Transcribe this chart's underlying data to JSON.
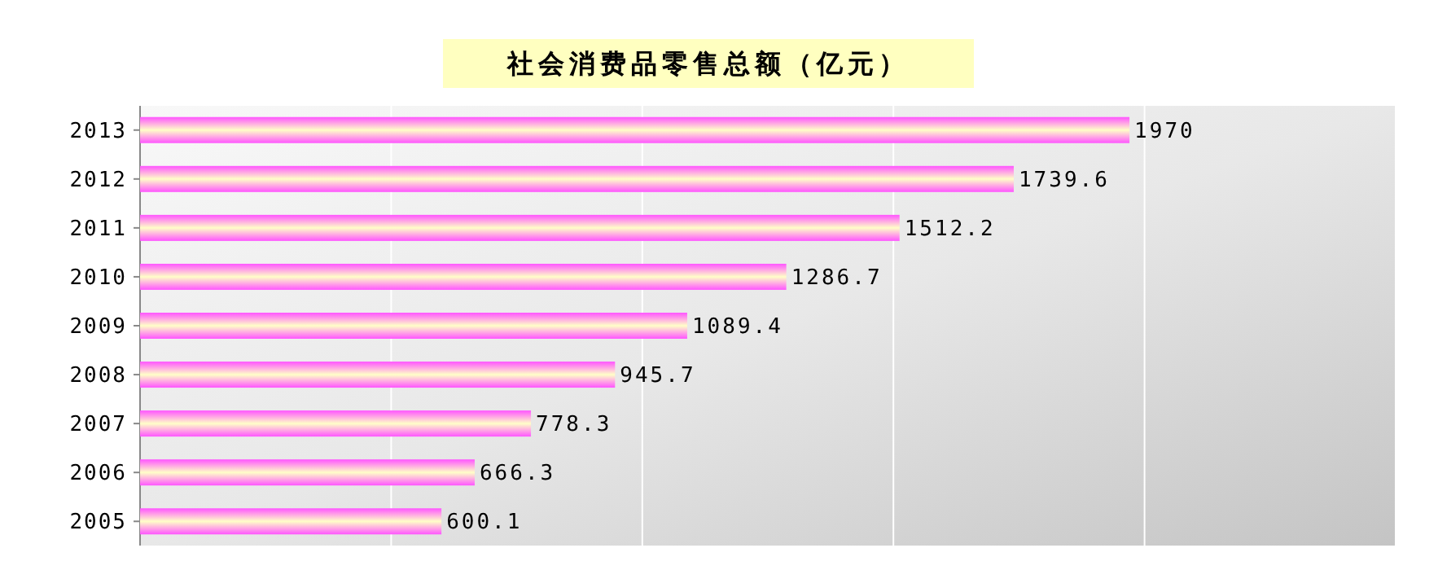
{
  "chart_data": {
    "type": "bar",
    "orientation": "horizontal",
    "title": "社会消费品零售总额（亿元）",
    "categories": [
      "2013",
      "2012",
      "2011",
      "2010",
      "2009",
      "2008",
      "2007",
      "2006",
      "2005"
    ],
    "values": [
      1970,
      1739.6,
      1512.2,
      1286.7,
      1089.4,
      945.7,
      778.3,
      666.3,
      600.1
    ],
    "color": "#ff55ff",
    "xlim": [
      0,
      2500
    ],
    "xticks": [
      {
        "value": 0,
        "label": null
      },
      {
        "value": 500,
        "label": null
      },
      {
        "value": 1000,
        "label": null
      },
      {
        "value": 1500,
        "label": null
      },
      {
        "value": 2000,
        "label": null
      },
      {
        "value": 2500,
        "label": null
      }
    ],
    "grid": "x",
    "tick_labels": "y",
    "data_labels": true
  }
}
